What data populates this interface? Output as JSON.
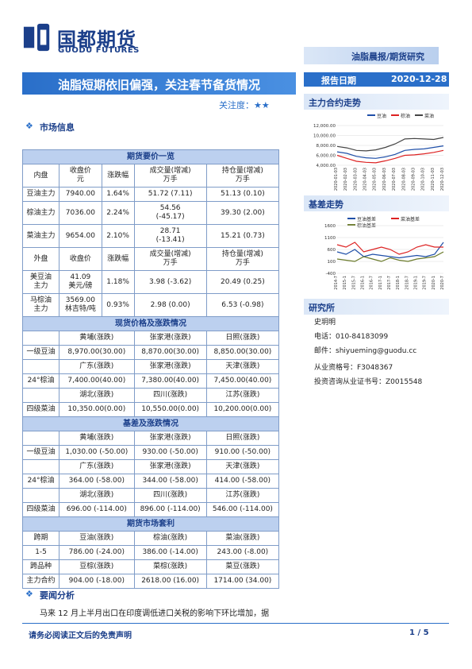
{
  "header": {
    "logo_cn": "国都期货",
    "logo_en": "GUODU FUTURES",
    "category": "油脂晨报/期货研究",
    "title": "油脂短期依旧偏强，关注春节备货情况",
    "date_label": "报告日期",
    "date": "2020-12-28",
    "focus_label": "关注度：",
    "focus_stars": "★★"
  },
  "sections": {
    "market": "市场信息",
    "news": "要闻分析"
  },
  "side": {
    "chart1_title": "主力合约走势",
    "chart2_title": "基差走势",
    "research_title": "研究所",
    "analyst": "史玥明",
    "phone": "电话：010-84183099",
    "email": "邮件：shiyueming@guodu.cc",
    "cert1": "从业资格号：F3048367",
    "cert2": "投资咨询从业证书号：Z0015548"
  },
  "table": {
    "sec1": "期货要价一览",
    "h1": [
      "内盘",
      "收盘价\n元",
      "涨跌幅",
      "成交量(增减)\n万手",
      "持仓量(增减)\n万手"
    ],
    "r1": [
      [
        "豆油主力",
        "7940.00",
        "1.64%",
        "51.72 (7.11)",
        "51.13 (0.10)"
      ],
      [
        "棕油主力",
        "7036.00",
        "2.24%",
        "54.56\n(-45.17)",
        "39.30 (2.00)"
      ],
      [
        "菜油主力",
        "9654.00",
        "2.10%",
        "28.71\n(-13.41)",
        "15.21 (0.73)"
      ]
    ],
    "h2": [
      "外盘",
      "收盘价",
      "涨跌幅",
      "成交量(增减)\n万手",
      "持仓量(增减)\n万手"
    ],
    "r2": [
      [
        "美豆油\n主力",
        "41.09\n美元/磅",
        "1.18%",
        "3.98 (-3.62)",
        "20.49 (0.25)"
      ],
      [
        "马棕油\n主力",
        "3569.00\n林吉特/吨",
        "0.93%",
        "2.98 (0.00)",
        "6.53 (-0.98)"
      ]
    ],
    "sec2": "现货价格及涨跌情况",
    "spot": [
      [
        "",
        "黄埔(涨跌)",
        "张家港(涨跌)",
        "日照(涨跌)"
      ],
      [
        "一级豆油",
        "8,970.00(30.00)",
        "8,870.00(30.00)",
        "8,850.00(30.00)"
      ],
      [
        "",
        "广东(涨跌)",
        "张家港(涨跌)",
        "天津(涨跌)"
      ],
      [
        "24°棕油",
        "7,400.00(40.00)",
        "7,380.00(40.00)",
        "7,450.00(40.00)"
      ],
      [
        "",
        "湖北(涨跌)",
        "四川(涨跌)",
        "江苏(涨跌)"
      ],
      [
        "四级菜油",
        "10,350.00(0.00)",
        "10,550.00(0.00)",
        "10,200.00(0.00)"
      ]
    ],
    "sec3": "基差及涨跌情况",
    "basis": [
      [
        "",
        "黄埔(涨跌)",
        "张家港(涨跌)",
        "日照(涨跌)"
      ],
      [
        "一级豆油",
        "1,030.00 (-50.00)",
        "930.00 (-50.00)",
        "910.00 (-50.00)"
      ],
      [
        "",
        "广东(涨跌)",
        "张家港(涨跌)",
        "天津(涨跌)"
      ],
      [
        "24°棕油",
        "364.00 (-58.00)",
        "344.00 (-58.00)",
        "414.00 (-58.00)"
      ],
      [
        "",
        "湖北(涨跌)",
        "四川(涨跌)",
        "江苏(涨跌)"
      ],
      [
        "四级菜油",
        "696.00 (-114.00)",
        "896.00 (-114.00)",
        "546.00 (-114.00)"
      ]
    ],
    "sec4": "期货市场套利",
    "arb": [
      [
        "跨期",
        "豆油(涨跌)",
        "棕油(涨跌)",
        "菜油(涨跌)"
      ],
      [
        "1-5",
        "786.00 (-24.00)",
        "386.00 (-14.00)",
        "243.00 (-8.00)"
      ],
      [
        "跨品种",
        "豆棕(涨跌)",
        "菜棕(涨跌)",
        "菜豆(涨跌)"
      ],
      [
        "主力合约",
        "904.00 (-18.00)",
        "2618.00 (16.00)",
        "1714.00 (34.00)"
      ]
    ]
  },
  "body_text": "马来 12 月上半月出口在印度调低进口关税的影响下环比增加，据",
  "footer": {
    "disclaimer": "请务必阅读正文后的免责声明",
    "page": "1 / 5"
  },
  "chart_data": [
    {
      "type": "line",
      "title": "",
      "legend": [
        "豆油",
        "棕油",
        "菜油"
      ],
      "colors": [
        "#1f4fa8",
        "#d22",
        "#444"
      ],
      "ylim": [
        4000,
        12000
      ],
      "yticks": [
        "12,000.00",
        "10,000.00",
        "8,000.00",
        "6,000.00",
        "4,000.00"
      ],
      "x": [
        "2020-01-03",
        "2020-02-03",
        "2020-03-03",
        "2020-04-03",
        "2020-05-03",
        "2020-06-03",
        "2020-07-03",
        "2020-08-03",
        "2020-09-03",
        "2020-10-03",
        "2020-11-03",
        "2020-12-03"
      ],
      "series": [
        {
          "name": "豆油",
          "values": [
            6700,
            6400,
            5800,
            5500,
            5400,
            5700,
            6200,
            7000,
            7200,
            7300,
            7600,
            7900
          ]
        },
        {
          "name": "棕油",
          "values": [
            6000,
            5400,
            4800,
            4600,
            4500,
            4900,
            5400,
            6000,
            6100,
            6300,
            6600,
            7000
          ]
        },
        {
          "name": "菜油",
          "values": [
            7800,
            7500,
            7000,
            6900,
            7100,
            7600,
            8300,
            9300,
            9400,
            9300,
            9200,
            9600
          ]
        }
      ]
    },
    {
      "type": "line",
      "title": "",
      "legend": [
        "豆油基差",
        "菜油基差",
        "棕油基差"
      ],
      "colors": [
        "#1f4fa8",
        "#d22",
        "#6a7a2a"
      ],
      "ylim": [
        -400,
        1600
      ],
      "yticks": [
        "1600",
        "1100",
        "600",
        "100",
        "-400"
      ],
      "x": [
        "2014-7",
        "2015-1",
        "2015-7",
        "2016-1",
        "2016-7",
        "2017-1",
        "2017-7",
        "2018-1",
        "2018-7",
        "2019-1",
        "2019-7",
        "2020-1",
        "2020-7"
      ],
      "series": [
        {
          "name": "豆油基差",
          "values": [
            500,
            400,
            600,
            300,
            400,
            350,
            300,
            250,
            300,
            350,
            300,
            400,
            900
          ]
        },
        {
          "name": "菜油基差",
          "values": [
            800,
            700,
            900,
            500,
            600,
            700,
            600,
            400,
            500,
            700,
            800,
            700,
            700
          ]
        },
        {
          "name": "棕油基差",
          "values": [
            200,
            150,
            100,
            300,
            200,
            100,
            250,
            150,
            100,
            200,
            250,
            300,
            500
          ]
        }
      ]
    }
  ]
}
